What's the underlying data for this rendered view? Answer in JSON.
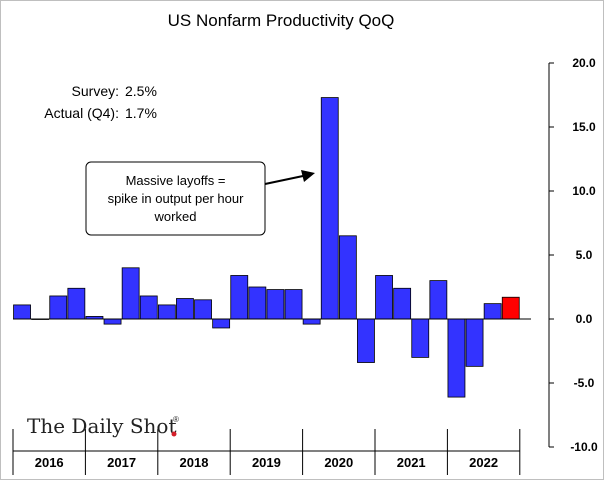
{
  "chart_data": {
    "type": "bar",
    "title": "US Nonfarm Productivity QoQ",
    "ylim": [
      -10,
      20
    ],
    "yticks": [
      20,
      15,
      10,
      5,
      0,
      -5,
      -10
    ],
    "ytick_labels": [
      "20.0",
      "15.0",
      "10.0",
      "5.0",
      "0.0",
      "-5.0",
      "-10.0"
    ],
    "years": [
      "2016",
      "2017",
      "2018",
      "2019",
      "2020",
      "2021",
      "2022"
    ],
    "categories": [
      "2016 Q1",
      "2016 Q2",
      "2016 Q3",
      "2016 Q4",
      "2017 Q1",
      "2017 Q2",
      "2017 Q3",
      "2017 Q4",
      "2018 Q1",
      "2018 Q2",
      "2018 Q3",
      "2018 Q4",
      "2019 Q1",
      "2019 Q2",
      "2019 Q3",
      "2019 Q4",
      "2020 Q1",
      "2020 Q2",
      "2020 Q3",
      "2020 Q4",
      "2021 Q1",
      "2021 Q2",
      "2021 Q3",
      "2021 Q4",
      "2022 Q1",
      "2022 Q2",
      "2022 Q3",
      "2022 Q4"
    ],
    "values": [
      1.1,
      0.0,
      1.8,
      2.4,
      0.2,
      -0.4,
      4.0,
      1.8,
      1.1,
      1.6,
      1.5,
      -0.7,
      3.4,
      2.5,
      2.3,
      2.3,
      -0.4,
      17.3,
      6.5,
      -3.4,
      3.4,
      2.4,
      -3.0,
      3.0,
      -6.1,
      -3.7,
      1.2,
      1.7
    ],
    "highlight_index": 27,
    "colors": {
      "bar": "#3333ff",
      "highlight": "#ff0000",
      "outline": "#000000"
    },
    "grid": false
  },
  "stats": {
    "survey_label": "Survey:",
    "survey_value": "2.5%",
    "actual_label": "Actual (Q4):",
    "actual_value": "1.7%"
  },
  "annotation": {
    "lines": [
      "Massive layoffs =",
      "spike in output per hour",
      "worked"
    ]
  },
  "brand": "The Daily Shot"
}
